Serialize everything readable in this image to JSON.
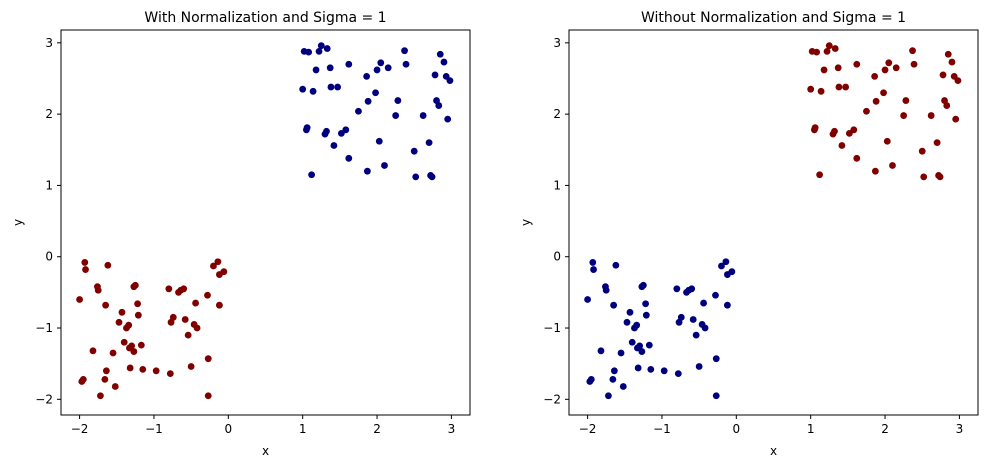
{
  "colors": {
    "cluster_a": "#800000",
    "cluster_b": "#00007f"
  },
  "chart_data": [
    {
      "type": "scatter",
      "title": "With Normalization and Sigma = 1",
      "xlabel": "x",
      "ylabel": "y",
      "xlim": [
        -2.25,
        3.25
      ],
      "ylim": [
        -2.22,
        3.18
      ],
      "xticks": [
        -2,
        -1,
        0,
        1,
        2,
        3
      ],
      "yticks": [
        -2,
        -1,
        0,
        1,
        2,
        3
      ],
      "grid": false,
      "series": [
        {
          "color": "#800000",
          "points": [
            [
              -2.0,
              -0.6
            ],
            [
              -1.95,
              -1.72
            ],
            [
              -1.97,
              -1.75
            ],
            [
              -1.93,
              -0.08
            ],
            [
              -1.92,
              -0.18
            ],
            [
              -1.82,
              -1.32
            ],
            [
              -1.76,
              -0.42
            ],
            [
              -1.75,
              -0.47
            ],
            [
              -1.72,
              -1.95
            ],
            [
              -1.66,
              -1.72
            ],
            [
              -1.65,
              -0.68
            ],
            [
              -1.64,
              -1.6
            ],
            [
              -1.62,
              -0.12
            ],
            [
              -1.55,
              -1.35
            ],
            [
              -1.52,
              -1.82
            ],
            [
              -1.47,
              -0.92
            ],
            [
              -1.43,
              -0.78
            ],
            [
              -1.4,
              -1.2
            ],
            [
              -1.37,
              -1.0
            ],
            [
              -1.34,
              -0.96
            ],
            [
              -1.33,
              -1.28
            ],
            [
              -1.32,
              -1.56
            ],
            [
              -1.3,
              -1.25
            ],
            [
              -1.27,
              -0.42
            ],
            [
              -1.27,
              -1.33
            ],
            [
              -1.25,
              -0.4
            ],
            [
              -1.22,
              -0.66
            ],
            [
              -1.21,
              -0.82
            ],
            [
              -1.17,
              -1.24
            ],
            [
              -1.15,
              -1.58
            ],
            [
              -0.97,
              -1.6
            ],
            [
              -0.8,
              -0.45
            ],
            [
              -0.78,
              -1.64
            ],
            [
              -0.77,
              -0.92
            ],
            [
              -0.74,
              -0.85
            ],
            [
              -0.67,
              -0.5
            ],
            [
              -0.64,
              -0.47
            ],
            [
              -0.6,
              -0.45
            ],
            [
              -0.58,
              -0.88
            ],
            [
              -0.54,
              -1.1
            ],
            [
              -0.5,
              -1.54
            ],
            [
              -0.46,
              -0.95
            ],
            [
              -0.44,
              -0.65
            ],
            [
              -0.42,
              -1.0
            ],
            [
              -0.28,
              -0.54
            ],
            [
              -0.27,
              -1.43
            ],
            [
              -0.27,
              -1.95
            ],
            [
              -0.2,
              -0.13
            ],
            [
              -0.14,
              -0.07
            ],
            [
              -0.12,
              -0.68
            ],
            [
              -0.12,
              -0.25
            ],
            [
              -0.06,
              -0.21
            ]
          ]
        },
        {
          "color": "#00007f",
          "points": [
            [
              1.0,
              2.35
            ],
            [
              1.02,
              2.88
            ],
            [
              1.05,
              1.78
            ],
            [
              1.06,
              1.81
            ],
            [
              1.08,
              2.87
            ],
            [
              1.12,
              1.15
            ],
            [
              1.14,
              2.32
            ],
            [
              1.18,
              2.62
            ],
            [
              1.22,
              2.88
            ],
            [
              1.25,
              2.96
            ],
            [
              1.3,
              1.72
            ],
            [
              1.32,
              1.76
            ],
            [
              1.33,
              2.92
            ],
            [
              1.37,
              2.65
            ],
            [
              1.38,
              2.38
            ],
            [
              1.42,
              1.56
            ],
            [
              1.47,
              2.38
            ],
            [
              1.52,
              1.73
            ],
            [
              1.58,
              1.78
            ],
            [
              1.62,
              1.38
            ],
            [
              1.62,
              2.7
            ],
            [
              1.75,
              2.04
            ],
            [
              1.86,
              2.53
            ],
            [
              1.87,
              1.2
            ],
            [
              1.88,
              2.18
            ],
            [
              1.98,
              2.3
            ],
            [
              2.0,
              2.62
            ],
            [
              2.03,
              1.62
            ],
            [
              2.05,
              2.72
            ],
            [
              2.1,
              1.28
            ],
            [
              2.15,
              2.65
            ],
            [
              2.25,
              1.98
            ],
            [
              2.28,
              2.19
            ],
            [
              2.37,
              2.89
            ],
            [
              2.39,
              2.7
            ],
            [
              2.5,
              1.48
            ],
            [
              2.52,
              1.12
            ],
            [
              2.62,
              1.98
            ],
            [
              2.7,
              1.6
            ],
            [
              2.72,
              1.14
            ],
            [
              2.74,
              1.12
            ],
            [
              2.78,
              2.55
            ],
            [
              2.8,
              2.19
            ],
            [
              2.83,
              2.12
            ],
            [
              2.85,
              2.84
            ],
            [
              2.9,
              2.73
            ],
            [
              2.93,
              2.53
            ],
            [
              2.95,
              1.93
            ],
            [
              2.98,
              2.47
            ]
          ]
        }
      ]
    },
    {
      "type": "scatter",
      "title": "Without Normalization and Sigma = 1",
      "xlabel": "x",
      "ylabel": "y",
      "xlim": [
        -2.25,
        3.25
      ],
      "ylim": [
        -2.22,
        3.18
      ],
      "xticks": [
        -2,
        -1,
        0,
        1,
        2,
        3
      ],
      "yticks": [
        -2,
        -1,
        0,
        1,
        2,
        3
      ],
      "grid": false,
      "series": [
        {
          "color": "#00007f",
          "points": [
            [
              -2.0,
              -0.6
            ],
            [
              -1.95,
              -1.72
            ],
            [
              -1.97,
              -1.75
            ],
            [
              -1.93,
              -0.08
            ],
            [
              -1.92,
              -0.18
            ],
            [
              -1.82,
              -1.32
            ],
            [
              -1.76,
              -0.42
            ],
            [
              -1.75,
              -0.47
            ],
            [
              -1.72,
              -1.95
            ],
            [
              -1.66,
              -1.72
            ],
            [
              -1.65,
              -0.68
            ],
            [
              -1.64,
              -1.6
            ],
            [
              -1.62,
              -0.12
            ],
            [
              -1.55,
              -1.35
            ],
            [
              -1.52,
              -1.82
            ],
            [
              -1.47,
              -0.92
            ],
            [
              -1.43,
              -0.78
            ],
            [
              -1.4,
              -1.2
            ],
            [
              -1.37,
              -1.0
            ],
            [
              -1.34,
              -0.96
            ],
            [
              -1.33,
              -1.28
            ],
            [
              -1.32,
              -1.56
            ],
            [
              -1.3,
              -1.25
            ],
            [
              -1.27,
              -0.42
            ],
            [
              -1.27,
              -1.33
            ],
            [
              -1.25,
              -0.4
            ],
            [
              -1.22,
              -0.66
            ],
            [
              -1.21,
              -0.82
            ],
            [
              -1.17,
              -1.24
            ],
            [
              -1.15,
              -1.58
            ],
            [
              -0.97,
              -1.6
            ],
            [
              -0.8,
              -0.45
            ],
            [
              -0.78,
              -1.64
            ],
            [
              -0.77,
              -0.92
            ],
            [
              -0.74,
              -0.85
            ],
            [
              -0.67,
              -0.5
            ],
            [
              -0.64,
              -0.47
            ],
            [
              -0.6,
              -0.45
            ],
            [
              -0.58,
              -0.88
            ],
            [
              -0.54,
              -1.1
            ],
            [
              -0.5,
              -1.54
            ],
            [
              -0.46,
              -0.95
            ],
            [
              -0.44,
              -0.65
            ],
            [
              -0.42,
              -1.0
            ],
            [
              -0.28,
              -0.54
            ],
            [
              -0.27,
              -1.43
            ],
            [
              -0.27,
              -1.95
            ],
            [
              -0.2,
              -0.13
            ],
            [
              -0.14,
              -0.07
            ],
            [
              -0.12,
              -0.68
            ],
            [
              -0.12,
              -0.25
            ],
            [
              -0.06,
              -0.21
            ]
          ]
        },
        {
          "color": "#800000",
          "points": [
            [
              1.0,
              2.35
            ],
            [
              1.02,
              2.88
            ],
            [
              1.05,
              1.78
            ],
            [
              1.06,
              1.81
            ],
            [
              1.08,
              2.87
            ],
            [
              1.12,
              1.15
            ],
            [
              1.14,
              2.32
            ],
            [
              1.18,
              2.62
            ],
            [
              1.22,
              2.88
            ],
            [
              1.25,
              2.96
            ],
            [
              1.3,
              1.72
            ],
            [
              1.32,
              1.76
            ],
            [
              1.33,
              2.92
            ],
            [
              1.37,
              2.65
            ],
            [
              1.38,
              2.38
            ],
            [
              1.42,
              1.56
            ],
            [
              1.47,
              2.38
            ],
            [
              1.52,
              1.73
            ],
            [
              1.58,
              1.78
            ],
            [
              1.62,
              1.38
            ],
            [
              1.62,
              2.7
            ],
            [
              1.75,
              2.04
            ],
            [
              1.86,
              2.53
            ],
            [
              1.87,
              1.2
            ],
            [
              1.88,
              2.18
            ],
            [
              1.98,
              2.3
            ],
            [
              2.0,
              2.62
            ],
            [
              2.03,
              1.62
            ],
            [
              2.05,
              2.72
            ],
            [
              2.1,
              1.28
            ],
            [
              2.15,
              2.65
            ],
            [
              2.25,
              1.98
            ],
            [
              2.28,
              2.19
            ],
            [
              2.37,
              2.89
            ],
            [
              2.39,
              2.7
            ],
            [
              2.5,
              1.48
            ],
            [
              2.52,
              1.12
            ],
            [
              2.62,
              1.98
            ],
            [
              2.7,
              1.6
            ],
            [
              2.72,
              1.14
            ],
            [
              2.74,
              1.12
            ],
            [
              2.78,
              2.55
            ],
            [
              2.8,
              2.19
            ],
            [
              2.83,
              2.12
            ],
            [
              2.85,
              2.84
            ],
            [
              2.9,
              2.73
            ],
            [
              2.93,
              2.53
            ],
            [
              2.95,
              1.93
            ],
            [
              2.98,
              2.47
            ]
          ]
        }
      ]
    }
  ]
}
